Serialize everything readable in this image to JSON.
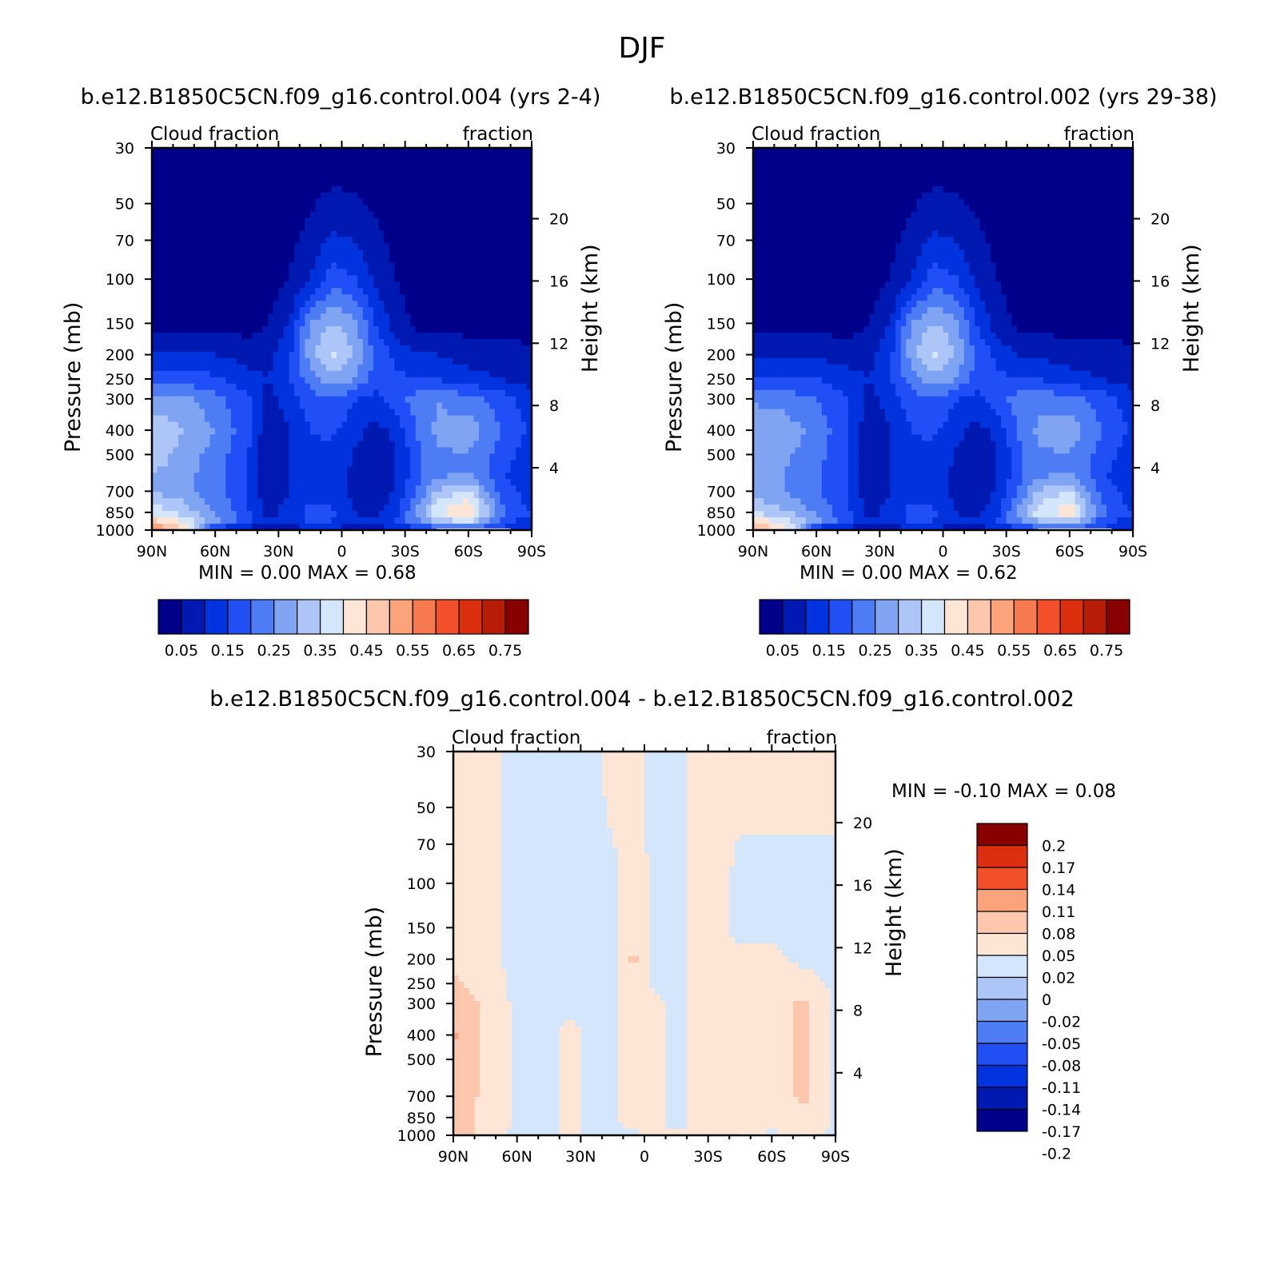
{
  "figure_title": "DJF",
  "color_palettes": {
    "blue_red_16": [
      "#00008a",
      "#0019b0",
      "#0033dd",
      "#1f4ff5",
      "#4d7cf5",
      "#7fa4f2",
      "#aec6f7",
      "#d4e6fc",
      "#fde6d5",
      "#fcc7ad",
      "#fba47c",
      "#f77a4f",
      "#f2502a",
      "#dc2f0f",
      "#b71d06",
      "#880000"
    ],
    "diff_14": [
      "#00008a",
      "#0019b0",
      "#0033dd",
      "#1f4ff5",
      "#4d7cf5",
      "#7fa4f2",
      "#aec6f7",
      "#d4e6fc",
      "#fde6d5",
      "#fcc7ad",
      "#fba47c",
      "#f2502a",
      "#dc2f0f",
      "#880000"
    ]
  },
  "chart_data": [
    {
      "type": "heatmap",
      "title": "b.e12.B1850C5CN.f09_g16.control.004 (yrs 2-4)",
      "left_subtitle": "Cloud fraction",
      "right_subtitle": "fraction",
      "xlabel": "",
      "ylabel": "Pressure (mb)",
      "y2label": "Height (km)",
      "x_ticklabels": [
        "90N",
        "60N",
        "30N",
        "0",
        "30S",
        "60S",
        "90S"
      ],
      "x_tick_lat": [
        90,
        60,
        30,
        0,
        -30,
        -60,
        -90
      ],
      "y_ticklabels": [
        "30",
        "50",
        "70",
        "100",
        "150",
        "200",
        "250",
        "300",
        "400",
        "500",
        "700",
        "850",
        "1000"
      ],
      "y_tick_p": [
        30,
        50,
        70,
        100,
        150,
        200,
        250,
        300,
        400,
        500,
        700,
        850,
        1000
      ],
      "y2_ticklabels": [
        "20",
        "16",
        "12",
        "8",
        "4"
      ],
      "y2_tick_km": [
        20,
        16,
        12,
        8,
        4
      ],
      "ylim": [
        1000,
        30
      ],
      "stats_text": "MIN =    0.00   MAX =    0.68",
      "min": 0.0,
      "max": 0.68,
      "colorbar_labels": [
        "0.05",
        "0.15",
        "0.25",
        "0.35",
        "0.45",
        "0.55",
        "0.65",
        "0.75"
      ],
      "contour_levels": [
        0.05,
        0.1,
        0.15,
        0.2,
        0.25,
        0.3,
        0.35,
        0.4,
        0.45,
        0.5,
        0.55,
        0.6,
        0.65,
        0.7,
        0.75
      ],
      "grid_lat": [
        90,
        75,
        60,
        45,
        35,
        25,
        15,
        5,
        -5,
        -15,
        -25,
        -35,
        -45,
        -60,
        -75,
        -90
      ],
      "grid_p": [
        30,
        100,
        150,
        200,
        250,
        300,
        400,
        500,
        600,
        700,
        850,
        925,
        1000
      ],
      "values": [
        [
          0.01,
          0.01,
          0.01,
          0.01,
          0.01,
          0.02,
          0.02,
          0.02,
          0.02,
          0.02,
          0.02,
          0.01,
          0.01,
          0.01,
          0.01,
          0.01
        ],
        [
          0.02,
          0.02,
          0.02,
          0.02,
          0.03,
          0.05,
          0.1,
          0.18,
          0.16,
          0.1,
          0.05,
          0.03,
          0.02,
          0.02,
          0.02,
          0.02
        ],
        [
          0.03,
          0.03,
          0.03,
          0.03,
          0.05,
          0.1,
          0.26,
          0.3,
          0.28,
          0.16,
          0.08,
          0.04,
          0.03,
          0.03,
          0.03,
          0.03
        ],
        [
          0.1,
          0.1,
          0.1,
          0.08,
          0.08,
          0.14,
          0.28,
          0.36,
          0.3,
          0.2,
          0.14,
          0.1,
          0.1,
          0.08,
          0.08,
          0.06
        ],
        [
          0.18,
          0.18,
          0.16,
          0.12,
          0.1,
          0.15,
          0.22,
          0.28,
          0.26,
          0.18,
          0.16,
          0.16,
          0.15,
          0.12,
          0.1,
          0.08
        ],
        [
          0.27,
          0.26,
          0.22,
          0.16,
          0.08,
          0.12,
          0.18,
          0.2,
          0.16,
          0.13,
          0.17,
          0.22,
          0.25,
          0.22,
          0.18,
          0.12
        ],
        [
          0.34,
          0.3,
          0.25,
          0.17,
          0.06,
          0.1,
          0.15,
          0.16,
          0.12,
          0.08,
          0.11,
          0.2,
          0.26,
          0.28,
          0.2,
          0.14
        ],
        [
          0.33,
          0.28,
          0.23,
          0.16,
          0.05,
          0.1,
          0.14,
          0.14,
          0.1,
          0.07,
          0.09,
          0.18,
          0.24,
          0.25,
          0.18,
          0.12
        ],
        [
          0.3,
          0.27,
          0.22,
          0.15,
          0.05,
          0.1,
          0.13,
          0.13,
          0.09,
          0.06,
          0.09,
          0.18,
          0.24,
          0.25,
          0.16,
          0.1
        ],
        [
          0.3,
          0.27,
          0.22,
          0.15,
          0.06,
          0.1,
          0.14,
          0.14,
          0.09,
          0.07,
          0.1,
          0.2,
          0.3,
          0.36,
          0.18,
          0.12
        ],
        [
          0.38,
          0.33,
          0.25,
          0.16,
          0.08,
          0.12,
          0.16,
          0.16,
          0.1,
          0.08,
          0.13,
          0.25,
          0.4,
          0.46,
          0.22,
          0.15
        ],
        [
          0.48,
          0.4,
          0.27,
          0.17,
          0.1,
          0.13,
          0.16,
          0.15,
          0.12,
          0.1,
          0.15,
          0.23,
          0.32,
          0.36,
          0.18,
          0.12
        ],
        [
          0.55,
          0.46,
          0.1,
          0.08,
          0.06,
          0.06,
          0.08,
          0.08,
          0.08,
          0.08,
          0.1,
          0.12,
          0.16,
          0.18,
          0.14,
          0.1
        ]
      ]
    },
    {
      "type": "heatmap",
      "title": "b.e12.B1850C5CN.f09_g16.control.002 (yrs 29-38)",
      "left_subtitle": "Cloud fraction",
      "right_subtitle": "fraction",
      "xlabel": "",
      "ylabel": "Pressure (mb)",
      "y2label": "Height (km)",
      "x_ticklabels": [
        "90N",
        "60N",
        "30N",
        "0",
        "30S",
        "60S",
        "90S"
      ],
      "x_tick_lat": [
        90,
        60,
        30,
        0,
        -30,
        -60,
        -90
      ],
      "y_ticklabels": [
        "30",
        "50",
        "70",
        "100",
        "150",
        "200",
        "250",
        "300",
        "400",
        "500",
        "700",
        "850",
        "1000"
      ],
      "y_tick_p": [
        30,
        50,
        70,
        100,
        150,
        200,
        250,
        300,
        400,
        500,
        700,
        850,
        1000
      ],
      "y2_ticklabels": [
        "20",
        "16",
        "12",
        "8",
        "4"
      ],
      "y2_tick_km": [
        20,
        16,
        12,
        8,
        4
      ],
      "ylim": [
        1000,
        30
      ],
      "stats_text": "MIN =    0.00   MAX =    0.62",
      "min": 0.0,
      "max": 0.62,
      "colorbar_labels": [
        "0.05",
        "0.15",
        "0.25",
        "0.35",
        "0.45",
        "0.55",
        "0.65",
        "0.75"
      ],
      "contour_levels": [
        0.05,
        0.1,
        0.15,
        0.2,
        0.25,
        0.3,
        0.35,
        0.4,
        0.45,
        0.5,
        0.55,
        0.6,
        0.65,
        0.7,
        0.75
      ],
      "grid_lat": [
        90,
        75,
        60,
        45,
        35,
        25,
        15,
        5,
        -5,
        -15,
        -25,
        -35,
        -45,
        -60,
        -75,
        -90
      ],
      "grid_p": [
        30,
        100,
        150,
        200,
        250,
        300,
        400,
        500,
        600,
        700,
        850,
        925,
        1000
      ],
      "values": [
        [
          0.01,
          0.01,
          0.01,
          0.01,
          0.01,
          0.02,
          0.02,
          0.02,
          0.02,
          0.02,
          0.02,
          0.01,
          0.01,
          0.01,
          0.01,
          0.01
        ],
        [
          0.02,
          0.02,
          0.02,
          0.02,
          0.03,
          0.05,
          0.1,
          0.18,
          0.16,
          0.1,
          0.05,
          0.03,
          0.02,
          0.02,
          0.02,
          0.02
        ],
        [
          0.03,
          0.03,
          0.03,
          0.03,
          0.05,
          0.1,
          0.26,
          0.3,
          0.28,
          0.16,
          0.08,
          0.04,
          0.03,
          0.03,
          0.03,
          0.03
        ],
        [
          0.09,
          0.09,
          0.09,
          0.08,
          0.08,
          0.14,
          0.28,
          0.36,
          0.3,
          0.2,
          0.14,
          0.1,
          0.09,
          0.08,
          0.08,
          0.06
        ],
        [
          0.16,
          0.16,
          0.15,
          0.12,
          0.1,
          0.15,
          0.22,
          0.28,
          0.26,
          0.18,
          0.16,
          0.16,
          0.15,
          0.12,
          0.1,
          0.08
        ],
        [
          0.24,
          0.23,
          0.2,
          0.15,
          0.08,
          0.12,
          0.18,
          0.2,
          0.16,
          0.13,
          0.17,
          0.22,
          0.24,
          0.22,
          0.18,
          0.12
        ],
        [
          0.3,
          0.28,
          0.23,
          0.16,
          0.06,
          0.1,
          0.15,
          0.16,
          0.12,
          0.08,
          0.11,
          0.2,
          0.26,
          0.28,
          0.2,
          0.14
        ],
        [
          0.3,
          0.26,
          0.22,
          0.15,
          0.05,
          0.1,
          0.14,
          0.14,
          0.1,
          0.07,
          0.09,
          0.18,
          0.24,
          0.25,
          0.18,
          0.12
        ],
        [
          0.28,
          0.25,
          0.21,
          0.15,
          0.05,
          0.1,
          0.13,
          0.13,
          0.09,
          0.06,
          0.09,
          0.18,
          0.24,
          0.25,
          0.16,
          0.1
        ],
        [
          0.28,
          0.25,
          0.21,
          0.15,
          0.06,
          0.1,
          0.14,
          0.14,
          0.09,
          0.07,
          0.1,
          0.2,
          0.3,
          0.35,
          0.18,
          0.12
        ],
        [
          0.35,
          0.31,
          0.24,
          0.16,
          0.08,
          0.12,
          0.16,
          0.16,
          0.1,
          0.08,
          0.13,
          0.25,
          0.38,
          0.44,
          0.22,
          0.15
        ],
        [
          0.45,
          0.38,
          0.26,
          0.17,
          0.1,
          0.13,
          0.16,
          0.15,
          0.12,
          0.1,
          0.15,
          0.23,
          0.3,
          0.34,
          0.18,
          0.12
        ],
        [
          0.52,
          0.44,
          0.1,
          0.08,
          0.06,
          0.06,
          0.08,
          0.08,
          0.08,
          0.08,
          0.1,
          0.12,
          0.16,
          0.18,
          0.14,
          0.1
        ]
      ]
    },
    {
      "type": "heatmap",
      "title": "b.e12.B1850C5CN.f09_g16.control.004 - b.e12.B1850C5CN.f09_g16.control.002",
      "left_subtitle": "Cloud fraction",
      "right_subtitle": "fraction",
      "xlabel": "",
      "ylabel": "Pressure (mb)",
      "y2label": "Height (km)",
      "x_ticklabels": [
        "90N",
        "60N",
        "30N",
        "0",
        "30S",
        "60S",
        "90S"
      ],
      "x_tick_lat": [
        90,
        60,
        30,
        0,
        -30,
        -60,
        -90
      ],
      "y_ticklabels": [
        "30",
        "50",
        "70",
        "100",
        "150",
        "200",
        "250",
        "300",
        "400",
        "500",
        "700",
        "850",
        "1000"
      ],
      "y_tick_p": [
        30,
        50,
        70,
        100,
        150,
        200,
        250,
        300,
        400,
        500,
        700,
        850,
        1000
      ],
      "y2_ticklabels": [
        "20",
        "16",
        "12",
        "8",
        "4"
      ],
      "y2_tick_km": [
        20,
        16,
        12,
        8,
        4
      ],
      "ylim": [
        1000,
        30
      ],
      "stats_text": "MIN =   -0.10   MAX =    0.08",
      "min": -0.1,
      "max": 0.08,
      "colorbar_labels": [
        "0.2",
        "0.17",
        "0.14",
        "0.11",
        "0.08",
        "0.05",
        "0.02",
        "0",
        "-0.02",
        "-0.05",
        "-0.08",
        "-0.11",
        "-0.14",
        "-0.17",
        "-0.2"
      ],
      "contour_levels": [
        -0.2,
        -0.17,
        -0.14,
        -0.11,
        -0.08,
        -0.05,
        -0.02,
        0,
        0.02,
        0.05,
        0.08,
        0.11,
        0.14,
        0.17,
        0.2
      ],
      "grid_lat": [
        90,
        75,
        60,
        45,
        35,
        25,
        15,
        5,
        -5,
        -15,
        -25,
        -35,
        -45,
        -60,
        -75,
        -90
      ],
      "grid_p": [
        30,
        100,
        150,
        200,
        250,
        300,
        400,
        500,
        600,
        700,
        850,
        925,
        1000
      ],
      "values": [
        [
          0.005,
          0.005,
          -0.005,
          -0.005,
          -0.005,
          -0.005,
          0.005,
          0.005,
          -0.005,
          -0.005,
          0.005,
          0.005,
          0.005,
          0.005,
          0.005,
          0.005
        ],
        [
          0.005,
          0.005,
          -0.005,
          -0.005,
          -0.005,
          -0.005,
          -0.005,
          0.01,
          -0.005,
          -0.005,
          0.005,
          0.005,
          -0.005,
          -0.005,
          -0.005,
          -0.005
        ],
        [
          0.01,
          0.005,
          -0.005,
          -0.005,
          -0.005,
          -0.005,
          -0.005,
          0.01,
          -0.005,
          -0.005,
          0.005,
          0.005,
          -0.005,
          -0.005,
          -0.005,
          -0.005
        ],
        [
          0.015,
          0.005,
          -0.005,
          -0.005,
          -0.005,
          -0.005,
          -0.005,
          0.025,
          -0.005,
          -0.005,
          0.005,
          0.005,
          0.005,
          0.005,
          -0.005,
          -0.005
        ],
        [
          0.025,
          0.01,
          -0.005,
          -0.005,
          -0.005,
          -0.005,
          -0.005,
          0.01,
          -0.005,
          -0.005,
          0.005,
          0.005,
          0.01,
          0.005,
          0.01,
          -0.005
        ],
        [
          0.04,
          0.015,
          -0.005,
          -0.005,
          -0.005,
          -0.005,
          -0.005,
          0.01,
          0.005,
          -0.005,
          0.005,
          0.005,
          0.01,
          0.005,
          0.025,
          -0.005
        ],
        [
          0.055,
          0.015,
          -0.005,
          -0.005,
          0.005,
          -0.005,
          -0.005,
          0.01,
          0.005,
          -0.005,
          0.005,
          0.005,
          0.01,
          0.005,
          0.025,
          -0.005
        ],
        [
          0.04,
          0.015,
          -0.005,
          -0.005,
          0.005,
          -0.005,
          -0.005,
          0.01,
          0.005,
          -0.005,
          0.005,
          0.005,
          0.01,
          0.005,
          0.025,
          -0.005
        ],
        [
          0.035,
          0.015,
          -0.005,
          -0.005,
          0.005,
          -0.005,
          -0.005,
          0.01,
          0.005,
          -0.005,
          0.005,
          0.005,
          0.01,
          0.005,
          0.025,
          -0.005
        ],
        [
          0.035,
          0.015,
          -0.005,
          -0.005,
          0.005,
          -0.005,
          -0.005,
          0.01,
          0.005,
          -0.005,
          0.005,
          0.005,
          0.01,
          0.005,
          0.025,
          -0.005
        ],
        [
          0.03,
          0.015,
          -0.005,
          -0.005,
          0.005,
          -0.005,
          -0.005,
          0.01,
          0.005,
          -0.005,
          0.005,
          0.005,
          0.005,
          0.005,
          0.015,
          -0.005
        ],
        [
          0.035,
          0.015,
          -0.005,
          -0.005,
          0.005,
          -0.005,
          -0.005,
          0.005,
          0.005,
          -0.005,
          0.005,
          0.005,
          0.005,
          0.005,
          0.015,
          -0.005
        ],
        [
          0.04,
          0.01,
          -0.005,
          -0.005,
          0.005,
          -0.005,
          -0.005,
          -0.005,
          0.005,
          0.005,
          0.005,
          0.005,
          0.005,
          -0.005,
          0.005,
          -0.005
        ]
      ]
    }
  ]
}
